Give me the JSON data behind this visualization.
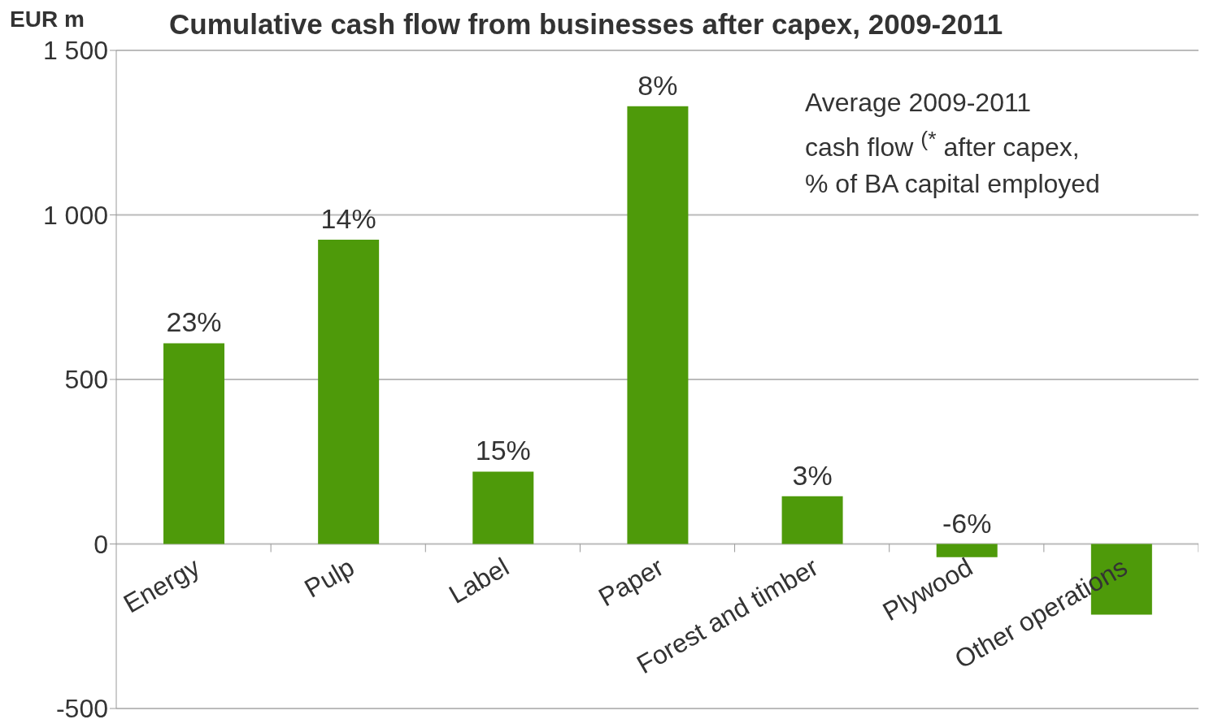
{
  "chart_data": {
    "type": "bar",
    "title": "Cumulative cash flow from businesses after capex, 2009-2011",
    "ylabel": "EUR m",
    "categories": [
      "Energy",
      "Pulp",
      "Label",
      "Paper",
      "Forest and timber",
      "Plywood",
      "Other operations"
    ],
    "values": [
      610,
      925,
      220,
      1330,
      145,
      -40,
      -215
    ],
    "color": "#4e9a0a",
    "ylim": [
      -500,
      1500
    ],
    "yticks": [
      {
        "value": -500,
        "label": "-500"
      },
      {
        "value": 0,
        "label": "0"
      },
      {
        "value": 500,
        "label": "500"
      },
      {
        "value": 1000,
        "label": "1 000"
      },
      {
        "value": 1500,
        "label": "1 500"
      }
    ],
    "grid": "y",
    "annotations": [
      "Average 2009-2011\ncash flow $^{(*}$ after capex,\n% of BA capital employed",
      {
        "text": "23%",
        "x": "Energy",
        "y": 610
      },
      {
        "text": "14%",
        "x": "Pulp",
        "y": 925
      },
      {
        "text": "15%",
        "x": "Label",
        "y": 220
      },
      {
        "text": "8%",
        "x": "Paper",
        "y": 1330
      },
      {
        "text": "3%",
        "x": "Forest and timber",
        "y": 145
      },
      {
        "text": "-6%",
        "x": "Plywood",
        "y": -40
      }
    ]
  }
}
